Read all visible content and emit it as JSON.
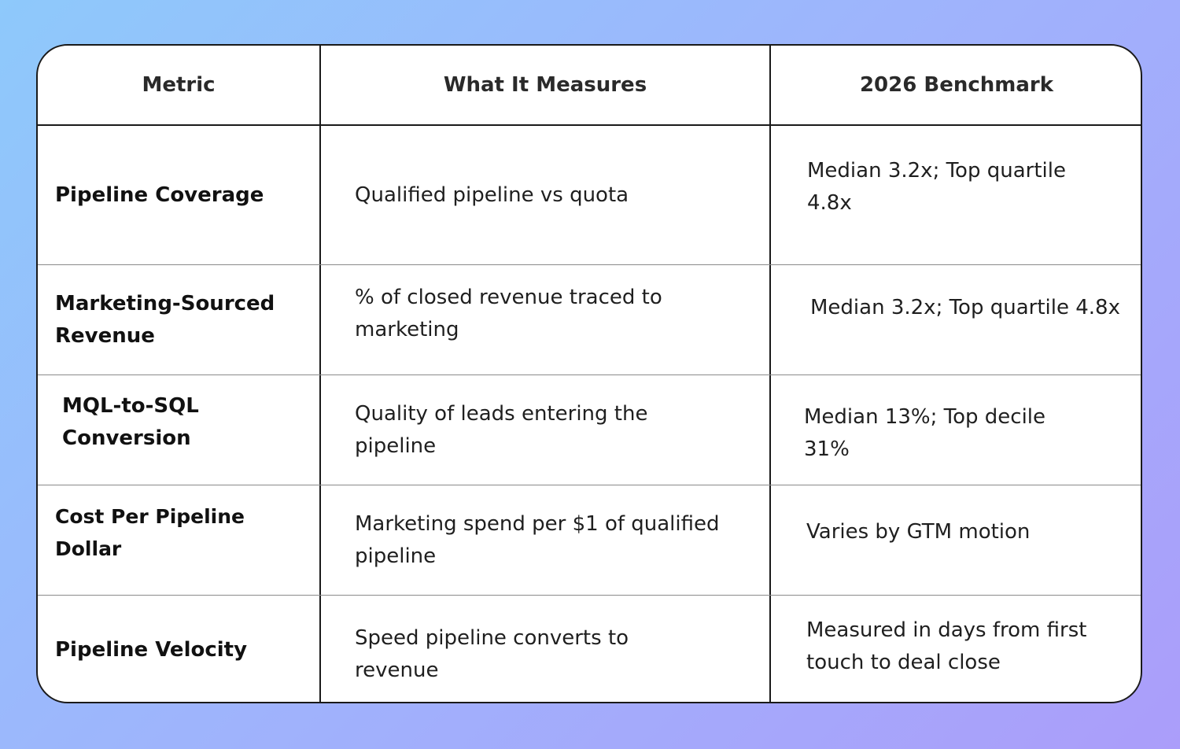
{
  "table": {
    "headers": [
      "Metric",
      "What It Measures",
      "2026 Benchmark"
    ],
    "rows": [
      {
        "metric": "Pipeline Coverage",
        "measures": "Qualified pipeline vs quota",
        "benchmark": "Median 3.2x; Top quartile 4.8x"
      },
      {
        "metric": "Marketing-Sourced Revenue",
        "measures": "% of closed revenue traced to marketing",
        "benchmark": "Median 3.2x; Top quartile 4.8x"
      },
      {
        "metric": "MQL-to-SQL Conversion",
        "measures": "Quality of leads entering the pipeline",
        "benchmark": "Median 13%; Top decile 31%"
      },
      {
        "metric": "Cost Per Pipeline Dollar",
        "measures": "Marketing spend per $1 of qualified pipeline",
        "benchmark": "Varies by GTM motion"
      },
      {
        "metric": "Pipeline Velocity",
        "measures": "Speed pipeline converts to revenue",
        "benchmark": "Measured in days from first touch to deal close"
      }
    ]
  }
}
